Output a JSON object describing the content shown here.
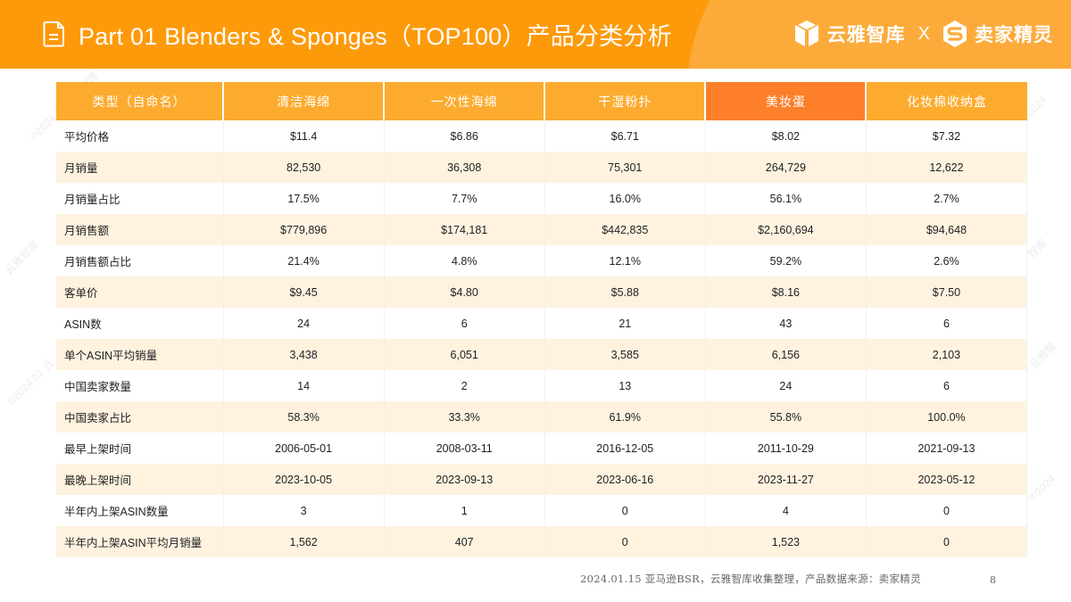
{
  "header": {
    "title": "Part 01  Blenders & Sponges（TOP100）产品分类分析",
    "icon": "document-icon",
    "brand_left": "云雅智库",
    "brand_separator": "X",
    "brand_right": "卖家精灵",
    "colors": {
      "bar": "#fd9a09",
      "swoosh": "#fcab3b"
    }
  },
  "table": {
    "columns": [
      "类型（自命名）",
      "清洁海绵",
      "一次性海绵",
      "干湿粉扑",
      "美妆蛋",
      "化妆棉收纳盒"
    ],
    "highlight_column": 4,
    "colors": {
      "header": "#fcab2f",
      "header_highlight": "#fd7f2a",
      "row_alt": "#fff3e0"
    },
    "rows": [
      [
        "平均价格",
        "$11.4",
        "$6.86",
        "$6.71",
        "$8.02",
        "$7.32"
      ],
      [
        "月销量",
        "82,530",
        "36,308",
        "75,301",
        "264,729",
        "12,622"
      ],
      [
        "月销量占比",
        "17.5%",
        "7.7%",
        "16.0%",
        "56.1%",
        "2.7%"
      ],
      [
        "月销售额",
        "$779,896",
        "$174,181",
        "$442,835",
        "$2,160,694",
        "$94,648"
      ],
      [
        "月销售额占比",
        "21.4%",
        "4.8%",
        "12.1%",
        "59.2%",
        "2.6%"
      ],
      [
        "客单价",
        "$9.45",
        "$4.80",
        "$5.88",
        "$8.16",
        "$7.50"
      ],
      [
        "ASIN数",
        "24",
        "6",
        "21",
        "43",
        "6"
      ],
      [
        "单个ASIN平均销量",
        "3,438",
        "6,051",
        "3,585",
        "6,156",
        "2,103"
      ],
      [
        "中国卖家数量",
        "14",
        "2",
        "13",
        "24",
        "6"
      ],
      [
        "中国卖家占比",
        "58.3%",
        "33.3%",
        "61.9%",
        "55.8%",
        "100.0%"
      ],
      [
        "最早上架时间",
        "2006-05-01",
        "2008-03-11",
        "2016-12-05",
        "2011-10-29",
        "2021-09-13"
      ],
      [
        "最晚上架时间",
        "2023-10-05",
        "2023-09-13",
        "2023-06-16",
        "2023-11-27",
        "2023-05-12"
      ],
      [
        "半年内上架ASIN数量",
        "3",
        "1",
        "0",
        "4",
        "0"
      ],
      [
        "半年内上架ASIN平均月销量",
        "1,562",
        "407",
        "0",
        "1,523",
        "0"
      ]
    ]
  },
  "footer": {
    "note": "2024.01.15 亚马逊BSR，云雅智库收集整理，产品数据来源：卖家精灵",
    "page_number": "8"
  }
}
